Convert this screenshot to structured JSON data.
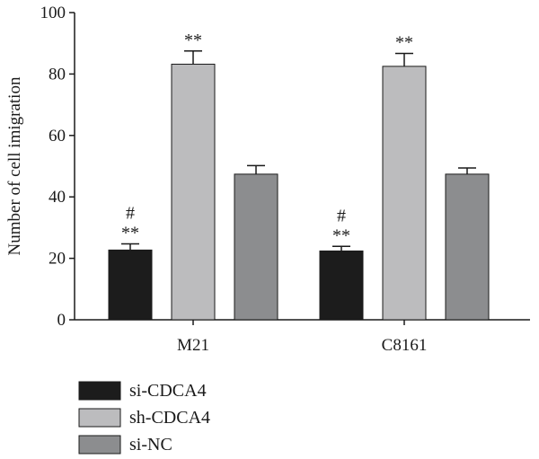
{
  "chart_data": {
    "type": "bar",
    "title": "",
    "xlabel": "",
    "ylabel": "Number of cell imigration",
    "ylim": [
      0,
      100
    ],
    "yticks": [
      0,
      20,
      40,
      60,
      80,
      100
    ],
    "categories": [
      "M21",
      "C8161"
    ],
    "series": [
      {
        "name": "si-CDCA4",
        "color": "#1c1c1c",
        "values": [
          22.7,
          22.4
        ],
        "errors": [
          2.0,
          1.5
        ]
      },
      {
        "name": "sh-CDCA4",
        "color": "#bcbcbe",
        "values": [
          83.2,
          82.5
        ],
        "errors": [
          4.3,
          4.2
        ]
      },
      {
        "name": "si-NC",
        "color": "#8c8d8f",
        "values": [
          47.4,
          47.4
        ],
        "errors": [
          2.8,
          2.0
        ]
      }
    ],
    "annotations": [
      {
        "category": "M21",
        "series": "si-CDCA4",
        "lines": [
          "#",
          "**"
        ]
      },
      {
        "category": "M21",
        "series": "sh-CDCA4",
        "lines": [
          "**"
        ]
      },
      {
        "category": "C8161",
        "series": "si-CDCA4",
        "lines": [
          "#",
          "**"
        ]
      },
      {
        "category": "C8161",
        "series": "sh-CDCA4",
        "lines": [
          "**"
        ]
      }
    ],
    "legend_position": "bottom-left",
    "grid": false
  }
}
